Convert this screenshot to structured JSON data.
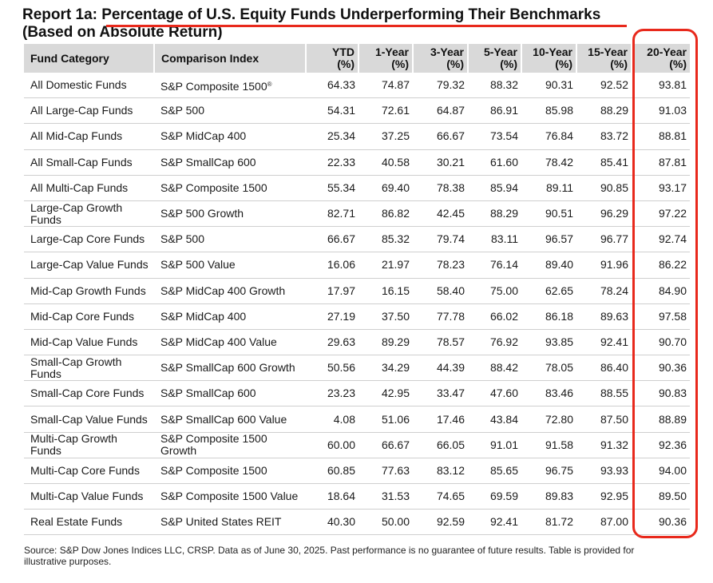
{
  "title": {
    "prefix": "Report 1a: ",
    "main": "Percentage of U.S. Equity Funds Underperforming Their Benchmarks",
    "subtitle": "(Based on Absolute Return)"
  },
  "table": {
    "headers": [
      "Fund Category",
      "Comparison Index",
      "YTD\n(%)",
      "1-Year\n(%)",
      "3-Year\n(%)",
      "5-Year\n(%)",
      "10-Year\n(%)",
      "15-Year\n(%)",
      "20-Year\n(%)"
    ],
    "rows": [
      [
        "All Domestic Funds",
        "S&P Composite 1500",
        "64.33",
        "74.87",
        "79.32",
        "88.32",
        "90.31",
        "92.52",
        "93.81"
      ],
      [
        "All Large-Cap Funds",
        "S&P 500",
        "54.31",
        "72.61",
        "64.87",
        "86.91",
        "85.98",
        "88.29",
        "91.03"
      ],
      [
        "All Mid-Cap Funds",
        "S&P MidCap 400",
        "25.34",
        "37.25",
        "66.67",
        "73.54",
        "76.84",
        "83.72",
        "88.81"
      ],
      [
        "All Small-Cap Funds",
        "S&P SmallCap 600",
        "22.33",
        "40.58",
        "30.21",
        "61.60",
        "78.42",
        "85.41",
        "87.81"
      ],
      [
        "All Multi-Cap Funds",
        "S&P Composite 1500",
        "55.34",
        "69.40",
        "78.38",
        "85.94",
        "89.11",
        "90.85",
        "93.17"
      ],
      [
        "Large-Cap Growth Funds",
        "S&P 500 Growth",
        "82.71",
        "86.82",
        "42.45",
        "88.29",
        "90.51",
        "96.29",
        "97.22"
      ],
      [
        "Large-Cap Core Funds",
        "S&P 500",
        "66.67",
        "85.32",
        "79.74",
        "83.11",
        "96.57",
        "96.77",
        "92.74"
      ],
      [
        "Large-Cap Value Funds",
        "S&P 500 Value",
        "16.06",
        "21.97",
        "78.23",
        "76.14",
        "89.40",
        "91.96",
        "86.22"
      ],
      [
        "Mid-Cap Growth Funds",
        "S&P MidCap 400 Growth",
        "17.97",
        "16.15",
        "58.40",
        "75.00",
        "62.65",
        "78.24",
        "84.90"
      ],
      [
        "Mid-Cap Core Funds",
        "S&P MidCap 400",
        "27.19",
        "37.50",
        "77.78",
        "66.02",
        "86.18",
        "89.63",
        "97.58"
      ],
      [
        "Mid-Cap Value Funds",
        "S&P MidCap 400 Value",
        "29.63",
        "89.29",
        "78.57",
        "76.92",
        "93.85",
        "92.41",
        "90.70"
      ],
      [
        "Small-Cap Growth Funds",
        "S&P SmallCap 600 Growth",
        "50.56",
        "34.29",
        "44.39",
        "88.42",
        "78.05",
        "86.40",
        "90.36"
      ],
      [
        "Small-Cap Core Funds",
        "S&P SmallCap 600",
        "23.23",
        "42.95",
        "33.47",
        "47.60",
        "83.46",
        "88.55",
        "90.83"
      ],
      [
        "Small-Cap Value Funds",
        "S&P SmallCap 600 Value",
        "4.08",
        "51.06",
        "17.46",
        "43.84",
        "72.80",
        "87.50",
        "88.89"
      ],
      [
        "Multi-Cap Growth Funds",
        "S&P Composite 1500 Growth",
        "60.00",
        "66.67",
        "66.05",
        "91.01",
        "91.58",
        "91.32",
        "92.36"
      ],
      [
        "Multi-Cap Core Funds",
        "S&P Composite 1500",
        "60.85",
        "77.63",
        "83.12",
        "85.65",
        "96.75",
        "93.93",
        "94.00"
      ],
      [
        "Multi-Cap Value Funds",
        "S&P Composite 1500 Value",
        "18.64",
        "31.53",
        "74.65",
        "69.59",
        "89.83",
        "92.95",
        "89.50"
      ],
      [
        "Real Estate Funds",
        "S&P United States REIT",
        "40.30",
        "50.00",
        "92.59",
        "92.41",
        "81.72",
        "87.00",
        "90.36"
      ]
    ],
    "registered_mark": "®"
  },
  "source": "Source: S&P Dow Jones Indices LLC, CRSP.  Data as of June 30, 2025.  Past performance is no guarantee of future results.  Table is provided for illustrative purposes.",
  "colors": {
    "accent_red": "#e8291c",
    "header_bg": "#d9d9d9"
  }
}
